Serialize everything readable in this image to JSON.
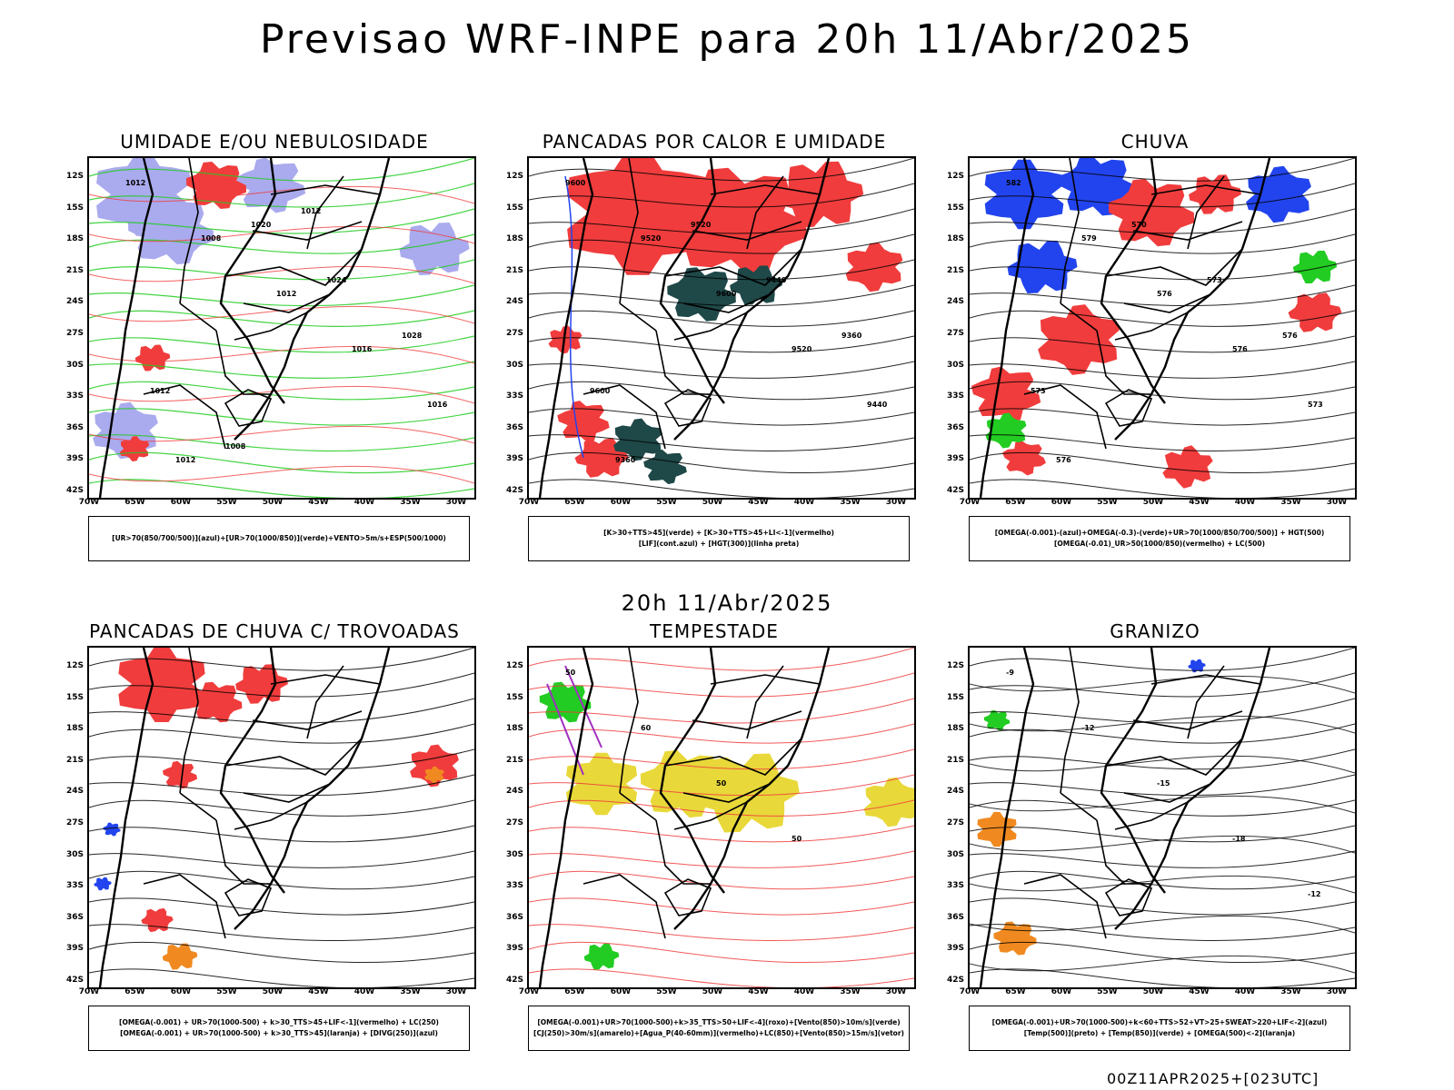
{
  "header": {
    "title": "Previsao WRF-INPE  para 20h 11/Abr/2025"
  },
  "middle": {
    "label": "20h 11/Abr/2025"
  },
  "footer": {
    "run_label": "00Z11APR2025+[023UTC]"
  },
  "axes": {
    "lat_labels": [
      "12S",
      "15S",
      "18S",
      "21S",
      "24S",
      "27S",
      "30S",
      "33S",
      "36S",
      "39S",
      "42S"
    ],
    "lon_labels": [
      "70W",
      "65W",
      "60W",
      "55W",
      "50W",
      "45W",
      "40W",
      "35W",
      "30W"
    ]
  },
  "colors": {
    "red": "#f03c3c",
    "green": "#22cc22",
    "blue": "#2244ee",
    "lavender": "#aaaaee",
    "yellow": "#e8d83a",
    "darkteal": "#1f4848",
    "orange": "#f08a20",
    "purple": "#a030c0"
  },
  "panels": [
    {
      "title": "UMIDADE E/OU NEBULOSIDADE",
      "legend": [
        "[UR>70(850/700/500)](azul)+[UR>70(1000/850)](verde)+VENTO>5m/s+ESP(500/1000)"
      ],
      "contour_labels": [
        "1012",
        "1008",
        "1012",
        "1016",
        "1016",
        "1012",
        "1020",
        "1024",
        "1028",
        "1012",
        "1008",
        "1012"
      ]
    },
    {
      "title": "PANCADAS POR CALOR E UMIDADE",
      "legend": [
        "[K>30+TTS>45](verde) + [K>30+TTS>45+LI<-1](vermelho)",
        "[LIF](cont.azul) + [HGT(300)](linha preta)"
      ],
      "contour_labels": [
        "9600",
        "9520",
        "9600",
        "9520",
        "9440",
        "9360",
        "9520",
        "9440",
        "9360",
        "9600"
      ]
    },
    {
      "title": "CHUVA",
      "legend": [
        "[OMEGA(-0.001)-(azul)+OMEGA(-0.3)-(verde)+UR>70(1000/850/700/500)] + HGT(500)",
        "[OMEGA(-0.01)_UR>50(1000/850)(vermelho) + LC(500)"
      ],
      "contour_labels": [
        "582",
        "579",
        "576",
        "576",
        "573",
        "576",
        "570",
        "573",
        "576",
        "573"
      ]
    },
    {
      "title": "PANCADAS DE CHUVA C/ TROVOADAS",
      "legend": [
        "[OMEGA(-0.001) + UR>70(1000-500) + k>30_TTS>45+LIF<-1](vermelho) + LC(250)",
        "[OMEGA(-0.001) + UR>70(1000-500) + k>30_TTS>45](laranja) + [DIVG(250)](azul)"
      ],
      "contour_labels": []
    },
    {
      "title": "TEMPESTADE",
      "legend": [
        "[OMEGA(-0.001)+UR>70(1000-500)+k>35_TTS>50+LIF<-4](roxo)+[Vento(850)>10m/s](verde)",
        "[CJ(250)>30m/s](amarelo)+[Agua_P(40-60mm)](vermelho)+LC(850)+[Vento(850)>15m/s](vetor)"
      ],
      "contour_labels": [
        "50",
        "60",
        "50",
        "50"
      ]
    },
    {
      "title": "GRANIZO",
      "legend": [
        "[OMEGA(-0.001)+UR>70(1000-500)+k<60+TTS>52+VT>25+SWEAT>220+LIF<-2](azul)",
        "[Temp(500)](preto) + [Temp(850)](verde) + [OMEGA(500)<-2](laranja)"
      ],
      "contour_labels": [
        "-9",
        "-12",
        "-15",
        "-18",
        "-12"
      ]
    }
  ]
}
